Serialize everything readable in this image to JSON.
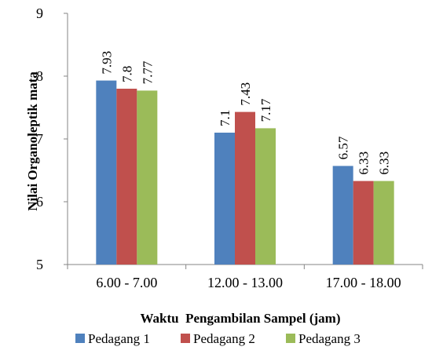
{
  "chart_data": {
    "type": "bar",
    "title": "",
    "xlabel": "Waktu  Pengambilan Sampel (jam)",
    "ylabel": "Nilai Organoleptik mata",
    "ylim": [
      5,
      9
    ],
    "yticks": [
      "5",
      "6",
      "7",
      "8",
      "9"
    ],
    "categories": [
      "6.00 - 7.00",
      "12.00 - 13.00",
      "17.00 - 18.00"
    ],
    "grid": false,
    "legend_position": "bottom",
    "series": [
      {
        "name": "Pedagang 1",
        "color": "#4F81BD",
        "values": [
          7.93,
          7.1,
          6.57
        ],
        "labels": [
          "7.93",
          "7.1",
          "6.57"
        ]
      },
      {
        "name": "Pedagang 2",
        "color": "#C0504D",
        "values": [
          7.8,
          7.43,
          6.33
        ],
        "labels": [
          "7.8",
          "7.43",
          "6.33"
        ]
      },
      {
        "name": "Pedagang 3",
        "color": "#9BBB59",
        "values": [
          7.77,
          7.17,
          6.33
        ],
        "labels": [
          "7.77",
          "7.17",
          "6.33"
        ]
      }
    ]
  }
}
